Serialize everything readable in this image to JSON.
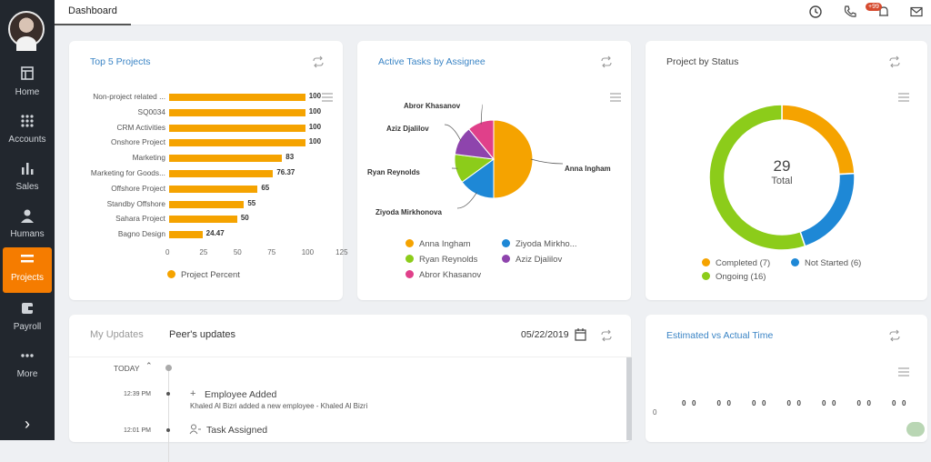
{
  "topbar": {
    "tab": "Dashboard",
    "badge": "+99"
  },
  "sidebar": {
    "items": [
      {
        "label": "Home",
        "icon": "home-icon"
      },
      {
        "label": "Accounts",
        "icon": "grid-icon"
      },
      {
        "label": "Sales",
        "icon": "bar-chart-icon"
      },
      {
        "label": "Humans",
        "icon": "person-icon"
      },
      {
        "label": "Projects",
        "icon": "projects-icon"
      },
      {
        "label": "Payroll",
        "icon": "wallet-icon"
      },
      {
        "label": "More",
        "icon": "more-icon"
      }
    ],
    "active": "Projects"
  },
  "top5": {
    "title": "Top 5 Projects",
    "legend": "Project Percent",
    "color": "#f5a300",
    "chart_data": {
      "type": "bar",
      "orientation": "horizontal",
      "categories": [
        "Non-project related ...",
        "SQ0034",
        "CRM Activities",
        "Onshore Project",
        "Marketing",
        "Marketing for Goods...",
        "Offshore Project",
        "Standby Offshore",
        "Sahara Project",
        "Bagno Design"
      ],
      "values": [
        100,
        100,
        100,
        100,
        83,
        76.37,
        65,
        55,
        50,
        24.47
      ],
      "labels": [
        "100",
        "100",
        "100",
        "100",
        "83",
        "76.37",
        "65",
        "55",
        "50",
        "24.47"
      ],
      "xticks": [
        "0",
        "25",
        "50",
        "75",
        "100",
        "125"
      ],
      "xlim": [
        0,
        125
      ],
      "series": [
        {
          "name": "Project Percent",
          "values": [
            100,
            100,
            100,
            100,
            83,
            76.37,
            65,
            55,
            50,
            24.47
          ]
        }
      ]
    }
  },
  "tasks": {
    "title": "Active Tasks by Assignee",
    "chart_data": {
      "type": "pie",
      "categories": [
        "Anna Ingham",
        "Ziyoda Mirkhonova",
        "Ryan Reynolds",
        "Aziz Djalilov",
        "Abror Khasanov"
      ],
      "values": [
        50,
        15,
        12,
        12,
        11
      ],
      "colors": [
        "#f5a300",
        "#1e88d6",
        "#8ccc1a",
        "#8e44ad",
        "#e0408a"
      ]
    },
    "legend": [
      "Anna Ingham",
      "Ziyoda Mirkho...",
      "Ryan Reynolds",
      "Aziz Djalilov",
      "Abror Khasanov"
    ]
  },
  "status": {
    "title": "Project by Status",
    "total": "29",
    "total_label": "Total",
    "chart_data": {
      "type": "pie",
      "donut": true,
      "categories": [
        "Completed",
        "Not Started",
        "Ongoing"
      ],
      "values": [
        7,
        6,
        16
      ],
      "colors": [
        "#f5a300",
        "#1e88d6",
        "#8ccc1a"
      ]
    },
    "legend": [
      "Completed (7)",
      "Not Started (6)",
      "Ongoing (16)"
    ]
  },
  "updates": {
    "tab_my": "My Updates",
    "tab_peer": "Peer's updates",
    "date": "05/22/2019",
    "today": "TODAY",
    "items": [
      {
        "time": "12:39 PM",
        "title": "Employee Added",
        "desc": "Khaled Al Bizri added a new employee - Khaled Al Bizri"
      },
      {
        "time": "12:01 PM",
        "title": "Task Assigned",
        "desc": ""
      }
    ]
  },
  "estimated": {
    "title": "Estimated vs Actual Time",
    "yaxis_zero": "0",
    "value_labels": [
      "0",
      "0",
      "0",
      "0",
      "0",
      "0",
      "0",
      "0",
      "0",
      "0",
      "0",
      "0",
      "0",
      "0"
    ]
  }
}
